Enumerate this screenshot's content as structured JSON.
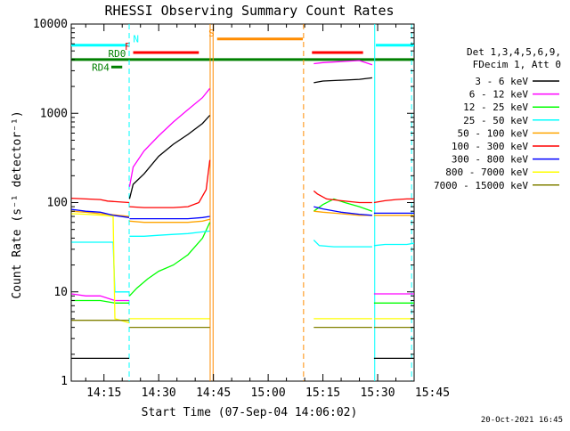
{
  "chart_data": {
    "type": "line",
    "title": "RHESSI Observing Summary Count Rates",
    "xlabel": "Start Time (07-Sep-04 14:06:02)",
    "ylabel": "Count Rate (s⁻¹ detector⁻¹)",
    "y_scale": "log",
    "ylim": [
      1,
      10000
    ],
    "xlim": [
      6.03,
      100.0
    ],
    "x_units": "minutes after 14:00 UT",
    "x_ticks": [
      15,
      30,
      45,
      60,
      75,
      90,
      105
    ],
    "x_tick_labels": [
      "14:15",
      "14:30",
      "14:45",
      "15:00",
      "15:15",
      "15:30",
      "15:45"
    ],
    "y_ticks": [
      1,
      10,
      100,
      1000,
      10000
    ],
    "y_tick_labels": [
      "1",
      "10",
      "100",
      "1000",
      "10000"
    ],
    "legend_title": [
      "Det 1,3,4,5,6,9,",
      "FDecim 1, Att 0"
    ],
    "legend_position": "right outside",
    "series": [
      {
        "name": "3 - 6 keV",
        "color": "#000000",
        "segments": [
          {
            "x": [
              6.1,
              10,
              14,
              18,
              21.5,
              21.9
            ],
            "y": [
              1.8,
              1.8,
              1.8,
              1.8,
              1.8,
              1.8
            ]
          },
          {
            "x": [
              22,
              23,
              26,
              30,
              34,
              38,
              42,
              44
            ],
            "y": [
              110,
              160,
              210,
              330,
              450,
              580,
              770,
              950
            ]
          },
          {
            "x": [
              72.5,
              75,
              80,
              85,
              88.5
            ],
            "y": [
              2200,
              2300,
              2350,
              2400,
              2500
            ]
          },
          {
            "x": [
              89,
              92,
              95,
              98,
              100
            ],
            "y": [
              1.8,
              1.8,
              1.8,
              1.8,
              1.8
            ]
          }
        ]
      },
      {
        "name": "6 - 12 keV",
        "color": "#ff00ff",
        "segments": [
          {
            "x": [
              6.1,
              10,
              14,
              18,
              21.9
            ],
            "y": [
              9.5,
              9,
              9,
              8,
              8
            ]
          },
          {
            "x": [
              22,
              23,
              26,
              30,
              34,
              38,
              42,
              44
            ],
            "y": [
              150,
              250,
              380,
              560,
              800,
              1100,
              1500,
              1900
            ]
          },
          {
            "x": [
              72.5,
              75,
              80,
              85,
              88.5
            ],
            "y": [
              3600,
              3700,
              3800,
              3900,
              3500
            ]
          },
          {
            "x": [
              89,
              92,
              95,
              98,
              100
            ],
            "y": [
              9.5,
              9.5,
              9.5,
              9.5,
              9.5
            ]
          }
        ]
      },
      {
        "name": "12 - 25 keV",
        "color": "#00ff00",
        "segments": [
          {
            "x": [
              6.1,
              10,
              14,
              18,
              21.9
            ],
            "y": [
              8,
              8,
              8,
              7.5,
              7.5
            ]
          },
          {
            "x": [
              22,
              24,
              27,
              30,
              34,
              38,
              42,
              44
            ],
            "y": [
              9,
              11,
              14,
              17,
              20,
              26,
              40,
              60
            ]
          },
          {
            "x": [
              72.5,
              75,
              78,
              81,
              85,
              88.5
            ],
            "y": [
              80,
              95,
              110,
              100,
              90,
              80
            ]
          },
          {
            "x": [
              89,
              92,
              95,
              98,
              100
            ],
            "y": [
              7.5,
              7.5,
              7.5,
              7.5,
              7.5
            ]
          }
        ]
      },
      {
        "name": "25 - 50 keV",
        "color": "#00ffff",
        "segments": [
          {
            "x": [
              6.1,
              10,
              15,
              17.5,
              18,
              21.9
            ],
            "y": [
              36,
              36,
              36,
              36,
              10,
              10
            ]
          },
          {
            "x": [
              22,
              26,
              30,
              34,
              38,
              42,
              44
            ],
            "y": [
              42,
              42,
              43,
              44,
              45,
              47,
              48
            ]
          },
          {
            "x": [
              72.5,
              74,
              78,
              82,
              86,
              88.5
            ],
            "y": [
              38,
              33,
              32,
              32,
              32,
              32
            ]
          },
          {
            "x": [
              89,
              92,
              95,
              98,
              100
            ],
            "y": [
              33,
              34,
              34,
              34,
              35
            ]
          }
        ]
      },
      {
        "name": "50 - 100 keV",
        "color": "#ffa500",
        "segments": [
          {
            "x": [
              6.1,
              10,
              14,
              17.5,
              21.9
            ],
            "y": [
              80,
              78,
              75,
              73,
              70
            ]
          },
          {
            "x": [
              22,
              26,
              30,
              34,
              38,
              42,
              44
            ],
            "y": [
              62,
              60,
              60,
              60,
              60,
              62,
              65
            ]
          },
          {
            "x": [
              72.5,
              75,
              80,
              85,
              88.5
            ],
            "y": [
              80,
              78,
              75,
              72,
              72
            ]
          },
          {
            "x": [
              89,
              92,
              95,
              98,
              100
            ],
            "y": [
              72,
              72,
              72,
              72,
              72
            ]
          }
        ]
      },
      {
        "name": "100 - 300 keV",
        "color": "#ff0000",
        "segments": [
          {
            "x": [
              6.1,
              10,
              14,
              16,
              21.9
            ],
            "y": [
              112,
              110,
              108,
              104,
              100
            ]
          },
          {
            "x": [
              22,
              26,
              30,
              34,
              38,
              41,
              43,
              44
            ],
            "y": [
              90,
              88,
              88,
              88,
              90,
              100,
              140,
              300
            ]
          },
          {
            "x": [
              72.5,
              73.5,
              76,
              80,
              85,
              88.5
            ],
            "y": [
              135,
              125,
              110,
              105,
              100,
              100
            ]
          },
          {
            "x": [
              89,
              92,
              95,
              98,
              100
            ],
            "y": [
              100,
              105,
              108,
              110,
              110
            ]
          }
        ]
      },
      {
        "name": "300 - 800 keV",
        "color": "#0000ff",
        "segments": [
          {
            "x": [
              6.1,
              10,
              14,
              17.5,
              21.9
            ],
            "y": [
              84,
              80,
              78,
              72,
              68
            ]
          },
          {
            "x": [
              22,
              26,
              30,
              34,
              38,
              42,
              44
            ],
            "y": [
              66,
              66,
              66,
              66,
              66,
              68,
              70
            ]
          },
          {
            "x": [
              72.5,
              75,
              80,
              85,
              88.5
            ],
            "y": [
              90,
              85,
              78,
              74,
              72
            ]
          },
          {
            "x": [
              89,
              92,
              95,
              98,
              100
            ],
            "y": [
              76,
              76,
              76,
              76,
              76
            ]
          }
        ]
      },
      {
        "name": "800 - 7000 keV",
        "color": "#ffff00",
        "segments": [
          {
            "x": [
              6.1,
              10,
              15,
              17.5,
              18,
              21.9
            ],
            "y": [
              75,
              74,
              72,
              70,
              5,
              4.5
            ]
          },
          {
            "x": [
              22,
              26,
              30,
              34,
              38,
              42,
              44
            ],
            "y": [
              5,
              5,
              5,
              5,
              5,
              5,
              5
            ]
          },
          {
            "x": [
              72.5,
              75,
              80,
              85,
              88.5
            ],
            "y": [
              5,
              5,
              5,
              5,
              5
            ]
          },
          {
            "x": [
              89,
              92,
              95,
              98,
              100
            ],
            "y": [
              5,
              5,
              5,
              5,
              5
            ]
          }
        ]
      },
      {
        "name": "7000 - 15000 keV",
        "color": "#808000",
        "segments": [
          {
            "x": [
              6.1,
              10,
              14,
              18,
              21.9
            ],
            "y": [
              4.8,
              4.8,
              4.8,
              4.8,
              4.8
            ]
          },
          {
            "x": [
              22,
              26,
              30,
              34,
              38,
              42,
              44
            ],
            "y": [
              4,
              4,
              4,
              4,
              4,
              4,
              4
            ]
          },
          {
            "x": [
              72.5,
              75,
              80,
              85,
              88.5
            ],
            "y": [
              4,
              4,
              4,
              4,
              4
            ]
          },
          {
            "x": [
              89,
              92,
              95,
              98,
              100
            ],
            "y": [
              4,
              4,
              4,
              4,
              4
            ]
          }
        ]
      }
    ],
    "flag_bars": [
      {
        "label": "N",
        "color": "#00ffff",
        "y": 5800,
        "x": [
          6.03,
          21.5
        ]
      },
      {
        "label": "",
        "color": "#00ffff",
        "y": 5800,
        "x": [
          89.5,
          100
        ]
      },
      {
        "label": "F",
        "color": "#ff0000",
        "y": 4800,
        "x": [
          23,
          41
        ]
      },
      {
        "label": "",
        "color": "#ff0000",
        "y": 4800,
        "x": [
          72,
          86
        ]
      },
      {
        "label": "RD0",
        "color": "#008000",
        "y": 4000,
        "x": [
          6.03,
          100
        ]
      },
      {
        "label": "RD4",
        "color": "#008000",
        "y": 3300,
        "x": [
          17,
          20
        ]
      },
      {
        "label": "S",
        "color": "#ff8c00",
        "y": 6800,
        "x": [
          46,
          69.5
        ]
      }
    ],
    "vertical_markers": [
      {
        "x": 21.9,
        "color": "#00ffff",
        "style": "dashed"
      },
      {
        "x": 89.2,
        "color": "#00ffff",
        "style": "solid"
      },
      {
        "x": 99.3,
        "color": "#00ffff",
        "style": "dashed"
      },
      {
        "x": 44.1,
        "color": "#ff8c00",
        "style": "solid"
      },
      {
        "x": 44.9,
        "color": "#ff8c00",
        "style": "solid"
      },
      {
        "x": 69.7,
        "color": "#ff8c00",
        "style": "dashed"
      }
    ],
    "background": "#ffffff"
  },
  "footer": {
    "timestamp": "20-Oct-2021 16:45"
  }
}
